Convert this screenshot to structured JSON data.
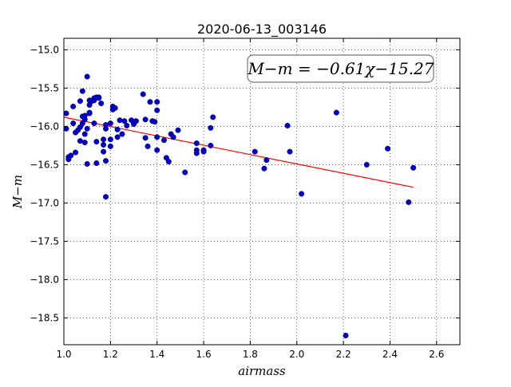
{
  "chart_data": {
    "type": "scatter",
    "title": "2020-06-13_003146",
    "xlabel": "airmass",
    "ylabel": "M−m",
    "xlim": [
      1.0,
      2.7
    ],
    "ylim": [
      -18.85,
      -14.85
    ],
    "x_ticks": [
      1.0,
      1.2,
      1.4,
      1.6,
      1.8,
      2.0,
      2.2,
      2.4,
      2.6
    ],
    "x_tick_labels": [
      "1.0",
      "1.2",
      "1.4",
      "1.6",
      "1.8",
      "2.0",
      "2.2",
      "2.4",
      "2.6"
    ],
    "y_ticks": [
      -15.0,
      -15.5,
      -16.0,
      -16.5,
      -17.0,
      -17.5,
      -18.0,
      -18.5
    ],
    "y_tick_labels": [
      "−15.0",
      "−15.5",
      "−16.0",
      "−16.5",
      "−17.0",
      "−17.5",
      "−18.0",
      "−18.5"
    ],
    "grid": true,
    "annotation": "M−m = −0.61χ−15.27",
    "annotation_placement": "top-right",
    "fit": {
      "slope": -0.61,
      "intercept": -15.27,
      "x_range": [
        1.0,
        2.5
      ],
      "color": "#ff0000"
    },
    "point_color": "#0000cc",
    "points": [
      [
        1.01,
        -16.03
      ],
      [
        1.01,
        -15.83
      ],
      [
        1.02,
        -16.4
      ],
      [
        1.02,
        -16.43
      ],
      [
        1.03,
        -16.38
      ],
      [
        1.04,
        -15.96
      ],
      [
        1.04,
        -15.74
      ],
      [
        1.05,
        -16.34
      ],
      [
        1.05,
        -16.08
      ],
      [
        1.06,
        -16.05
      ],
      [
        1.07,
        -15.67
      ],
      [
        1.07,
        -16.01
      ],
      [
        1.07,
        -16.19
      ],
      [
        1.08,
        -15.54
      ],
      [
        1.08,
        -15.87
      ],
      [
        1.08,
        -15.96
      ],
      [
        1.09,
        -15.91
      ],
      [
        1.09,
        -16.1
      ],
      [
        1.09,
        -16.21
      ],
      [
        1.09,
        -15.86
      ],
      [
        1.1,
        -15.35
      ],
      [
        1.1,
        -16.03
      ],
      [
        1.1,
        -16.49
      ],
      [
        1.11,
        -15.66
      ],
      [
        1.11,
        -15.72
      ],
      [
        1.11,
        -15.82
      ],
      [
        1.11,
        -15.83
      ],
      [
        1.12,
        -15.67
      ],
      [
        1.13,
        -15.96
      ],
      [
        1.13,
        -15.63
      ],
      [
        1.13,
        -15.66
      ],
      [
        1.14,
        -15.62
      ],
      [
        1.14,
        -16.2
      ],
      [
        1.14,
        -16.48
      ],
      [
        1.15,
        -15.62
      ],
      [
        1.15,
        -15.63
      ],
      [
        1.16,
        -15.7
      ],
      [
        1.17,
        -16.17
      ],
      [
        1.17,
        -16.33
      ],
      [
        1.17,
        -16.24
      ],
      [
        1.18,
        -15.98
      ],
      [
        1.18,
        -16.03
      ],
      [
        1.18,
        -16.45
      ],
      [
        1.18,
        -16.92
      ],
      [
        1.2,
        -16.17
      ],
      [
        1.2,
        -15.96
      ],
      [
        1.2,
        -16.26
      ],
      [
        1.21,
        -15.74
      ],
      [
        1.21,
        -15.78
      ],
      [
        1.22,
        -15.76
      ],
      [
        1.23,
        -16.14
      ],
      [
        1.23,
        -16.04
      ],
      [
        1.24,
        -15.92
      ],
      [
        1.25,
        -16.1
      ],
      [
        1.26,
        -15.93
      ],
      [
        1.27,
        -15.99
      ],
      [
        1.29,
        -15.92
      ],
      [
        1.3,
        -15.97
      ],
      [
        1.31,
        -15.93
      ],
      [
        1.34,
        -15.58
      ],
      [
        1.35,
        -16.15
      ],
      [
        1.35,
        -15.91
      ],
      [
        1.36,
        -16.26
      ],
      [
        1.37,
        -15.68
      ],
      [
        1.38,
        -15.93
      ],
      [
        1.39,
        -15.94
      ],
      [
        1.4,
        -15.68
      ],
      [
        1.4,
        -15.79
      ],
      [
        1.4,
        -16.14
      ],
      [
        1.4,
        -16.31
      ],
      [
        1.43,
        -16.18
      ],
      [
        1.44,
        -16.41
      ],
      [
        1.45,
        -16.46
      ],
      [
        1.46,
        -16.1
      ],
      [
        1.47,
        -16.14
      ],
      [
        1.49,
        -16.05
      ],
      [
        1.52,
        -16.6
      ],
      [
        1.57,
        -16.22
      ],
      [
        1.57,
        -16.31
      ],
      [
        1.57,
        -16.35
      ],
      [
        1.6,
        -16.31
      ],
      [
        1.6,
        -16.33
      ],
      [
        1.63,
        -16.25
      ],
      [
        1.63,
        -16.02
      ],
      [
        1.64,
        -15.88
      ],
      [
        1.82,
        -16.33
      ],
      [
        1.86,
        -16.55
      ],
      [
        1.87,
        -16.44
      ],
      [
        1.96,
        -15.99
      ],
      [
        1.97,
        -16.33
      ],
      [
        2.02,
        -16.88
      ],
      [
        2.17,
        -15.82
      ],
      [
        2.21,
        -18.73
      ],
      [
        2.3,
        -16.5
      ],
      [
        2.39,
        -16.29
      ],
      [
        2.48,
        -16.99
      ],
      [
        2.5,
        -16.54
      ]
    ]
  }
}
